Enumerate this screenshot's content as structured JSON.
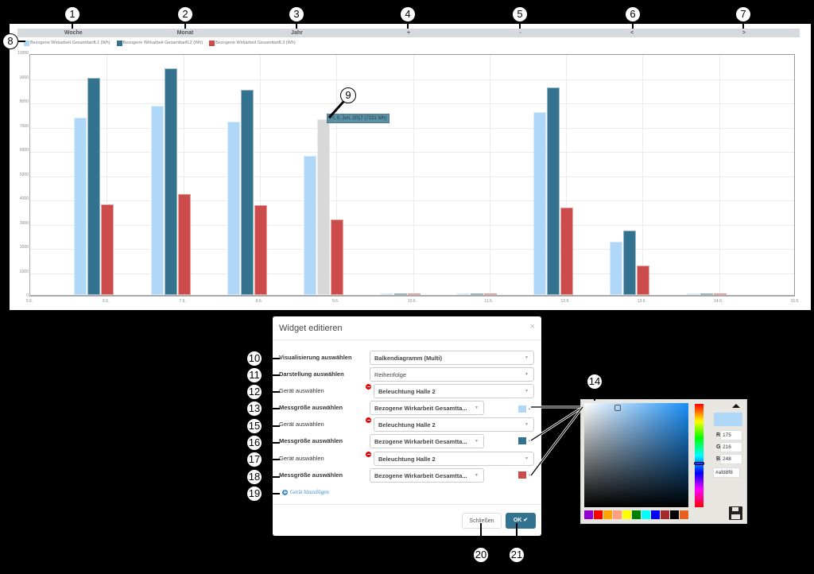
{
  "chart_nav": {
    "buttons": [
      "Woche",
      "Monat",
      "Jahr",
      "+",
      "-",
      "<",
      ">"
    ]
  },
  "legend": [
    {
      "label": "Bezogene Wirkarbeit GesamttarifL1 (Wh)",
      "color": "#afd8f8"
    },
    {
      "label": "Bezogene Wirkarbeit GesamttarifL2 (Wh)",
      "color": "#337390"
    },
    {
      "label": "Bezogene Wirkarbeit GesamttarifL3 (Wh)",
      "color": "#cc4c4c"
    }
  ],
  "tooltip": {
    "text": "Fr, 9. Jun. 2017 (7231 Wh)"
  },
  "chart_data": {
    "type": "bar",
    "title": "",
    "xlabel": "",
    "ylabel": "",
    "ylim": [
      0,
      10000
    ],
    "yticks": [
      "0",
      "1000",
      "2000",
      "3000",
      "4000",
      "5000",
      "6000",
      "7000",
      "8000",
      "9000",
      "10000"
    ],
    "xticks": [
      "5.6.",
      "6.6.",
      "7.6.",
      "8.6.",
      "9.6.",
      "10.6.",
      "11.6.",
      "12.6.",
      "13.6.",
      "14.6.",
      "15.6."
    ],
    "categories": [
      "6.6.",
      "7.6.",
      "8.6.",
      "9.6.",
      "10.6.",
      "11.6.",
      "12.6.",
      "13.6.",
      "14.6."
    ],
    "series": [
      {
        "name": "Bezogene Wirkarbeit GesamttarifL1 (Wh)",
        "color": "#afd8f8",
        "values": [
          7300,
          7800,
          7150,
          5750,
          20,
          20,
          7550,
          2200,
          20
        ]
      },
      {
        "name": "Bezogene Wirkarbeit GesamttarifL2 (Wh)",
        "color": "#337390",
        "values": [
          8950,
          9350,
          8450,
          7231,
          20,
          20,
          8550,
          2650,
          20
        ]
      },
      {
        "name": "Bezogene Wirkarbeit GesamttarifL3 (Wh)",
        "color": "#cc4c4c",
        "values": [
          3750,
          4150,
          3700,
          3100,
          20,
          20,
          3600,
          1200,
          20
        ]
      }
    ],
    "highlighted": {
      "series": 1,
      "category": "9.6.",
      "value": 7231
    },
    "grid": true,
    "legend_position": "top-left"
  },
  "dialog": {
    "title": "Widget editieren",
    "close_icon": "×",
    "rows": [
      {
        "label": "Visualisierung auswählen",
        "value": "Balkendiagramm (Multi)"
      },
      {
        "label": "Darstellung auswählen",
        "value": "Reihenfolge"
      },
      {
        "label": "Gerät auswählen",
        "value": "Beleuchtung Halle 2"
      },
      {
        "label": "Messgröße auswählen",
        "value": "Bezogene Wirkarbeit Gesamtta...",
        "color": "#afd8f8"
      },
      {
        "label": "Gerät auswählen",
        "value": "Beleuchtung Halle 2"
      },
      {
        "label": "Messgröße auswählen",
        "value": "Bezogene Wirkarbeit Gesamtta...",
        "color": "#337390"
      },
      {
        "label": "Gerät auswählen",
        "value": "Beleuchtung Halle 2"
      },
      {
        "label": "Messgröße auswählen",
        "value": "Bezogene Wirkarbeit Gesamtta...",
        "color": "#cc4c4c"
      }
    ],
    "add_device": "Gerät hinzufügen",
    "close_button": "Schließen",
    "ok_button": "OK ✔"
  },
  "color_picker": {
    "r": "175",
    "g": "216",
    "b": "248",
    "hex": "#afd8f8",
    "labels": {
      "r": "R",
      "g": "G",
      "b": "B"
    },
    "palette": [
      "#9400d3",
      "#ff0000",
      "#ffa500",
      "#ffa07a",
      "#ffff00",
      "#008000",
      "#00ffff",
      "#0000ff",
      "#a52a2a",
      "#000000",
      "#e8601c"
    ]
  },
  "callouts": [
    "1",
    "2",
    "3",
    "4",
    "5",
    "6",
    "7",
    "8",
    "9",
    "10",
    "11",
    "12",
    "13",
    "14",
    "15",
    "16",
    "17",
    "18",
    "19",
    "20",
    "21"
  ]
}
